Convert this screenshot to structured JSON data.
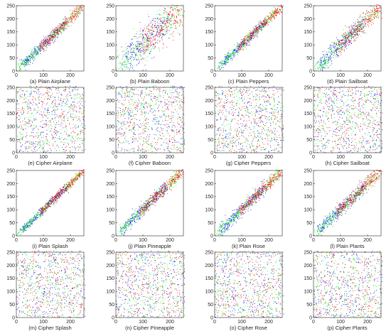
{
  "chart_data": [
    {
      "type": "scatter",
      "caption": "(a) Plain Airplane",
      "pattern": "correlated",
      "spread": 10,
      "xlim": [
        0,
        250
      ],
      "ylim": [
        0,
        250
      ],
      "xticks": [
        0,
        100,
        200
      ],
      "yticks": [
        0,
        50,
        100,
        150,
        200,
        250
      ],
      "x_tick_labels": [
        "0",
        "100",
        "200"
      ],
      "y_tick_labels": [
        "0",
        "50",
        "100",
        "150",
        "200",
        "250"
      ],
      "series": [
        {
          "color": "#0000ff"
        },
        {
          "color": "#00ff00"
        },
        {
          "color": "#ff0000"
        }
      ]
    },
    {
      "type": "scatter",
      "caption": "(b) Plain Baboon",
      "pattern": "correlated",
      "spread": 32,
      "xlim": [
        0,
        250
      ],
      "ylim": [
        0,
        250
      ],
      "xticks": [
        0,
        100,
        200
      ],
      "yticks": [
        0,
        50,
        100,
        150,
        200,
        250
      ],
      "x_tick_labels": [
        "0",
        "100",
        "200"
      ],
      "y_tick_labels": [
        "0",
        "50",
        "100",
        "150",
        "200",
        "250"
      ],
      "series": [
        {
          "color": "#0000ff"
        },
        {
          "color": "#00ff00"
        },
        {
          "color": "#ff0000"
        }
      ]
    },
    {
      "type": "scatter",
      "caption": "(c) Plain Peppers",
      "pattern": "correlated",
      "spread": 9,
      "xlim": [
        0,
        250
      ],
      "ylim": [
        0,
        250
      ],
      "xticks": [
        0,
        100,
        200
      ],
      "yticks": [
        0,
        50,
        100,
        150,
        200,
        250
      ],
      "x_tick_labels": [
        "0",
        "100",
        "200"
      ],
      "y_tick_labels": [
        "0",
        "50",
        "100",
        "150",
        "200",
        "250"
      ],
      "series": [
        {
          "color": "#0000ff"
        },
        {
          "color": "#00ff00"
        },
        {
          "color": "#ff0000"
        }
      ]
    },
    {
      "type": "scatter",
      "caption": "(d) Plain Sailboat",
      "pattern": "correlated",
      "spread": 16,
      "xlim": [
        0,
        250
      ],
      "ylim": [
        0,
        250
      ],
      "xticks": [
        0,
        100,
        200
      ],
      "yticks": [
        0,
        50,
        100,
        150,
        200,
        250
      ],
      "x_tick_labels": [
        "0",
        "100",
        "200"
      ],
      "y_tick_labels": [
        "0",
        "50",
        "100",
        "150",
        "200",
        "250"
      ],
      "series": [
        {
          "color": "#0000ff"
        },
        {
          "color": "#00ff00"
        },
        {
          "color": "#ff0000"
        }
      ]
    },
    {
      "type": "scatter",
      "caption": "(e) Cipher Airplane",
      "pattern": "uniform",
      "xlim": [
        0,
        250
      ],
      "ylim": [
        0,
        250
      ],
      "xticks": [
        0,
        100,
        200
      ],
      "yticks": [
        0,
        50,
        100,
        150,
        200,
        250
      ],
      "x_tick_labels": [
        "0",
        "100",
        "200"
      ],
      "y_tick_labels": [
        "0",
        "50",
        "100",
        "150",
        "200",
        "250"
      ],
      "series": [
        {
          "color": "#0000ff"
        },
        {
          "color": "#00ff00"
        },
        {
          "color": "#ff0000"
        }
      ]
    },
    {
      "type": "scatter",
      "caption": "(f) Cipher Baboon",
      "pattern": "uniform",
      "xlim": [
        0,
        250
      ],
      "ylim": [
        0,
        250
      ],
      "xticks": [
        0,
        100,
        200
      ],
      "yticks": [
        0,
        50,
        100,
        150,
        200,
        250
      ],
      "x_tick_labels": [
        "0",
        "100",
        "200"
      ],
      "y_tick_labels": [
        "0",
        "50",
        "100",
        "150",
        "200",
        "250"
      ],
      "series": [
        {
          "color": "#0000ff"
        },
        {
          "color": "#00ff00"
        },
        {
          "color": "#ff0000"
        }
      ]
    },
    {
      "type": "scatter",
      "caption": "(g) Cipher Peppers",
      "pattern": "uniform",
      "xlim": [
        0,
        250
      ],
      "ylim": [
        0,
        250
      ],
      "xticks": [
        0,
        100,
        200
      ],
      "yticks": [
        0,
        50,
        100,
        150,
        200,
        250
      ],
      "x_tick_labels": [
        "0",
        "100",
        "200"
      ],
      "y_tick_labels": [
        "0",
        "50",
        "100",
        "150",
        "200",
        "250"
      ],
      "series": [
        {
          "color": "#0000ff"
        },
        {
          "color": "#00ff00"
        },
        {
          "color": "#ff0000"
        }
      ]
    },
    {
      "type": "scatter",
      "caption": "(h) Cipher Sailboat",
      "pattern": "uniform",
      "xlim": [
        0,
        250
      ],
      "ylim": [
        0,
        250
      ],
      "xticks": [
        0,
        100,
        200
      ],
      "yticks": [
        0,
        50,
        100,
        150,
        200,
        250
      ],
      "x_tick_labels": [
        "0",
        "100",
        "200"
      ],
      "y_tick_labels": [
        "0",
        "50",
        "100",
        "150",
        "200",
        "250"
      ],
      "series": [
        {
          "color": "#0000ff"
        },
        {
          "color": "#00ff00"
        },
        {
          "color": "#ff0000"
        }
      ]
    },
    {
      "type": "scatter",
      "caption": "(i) Plain Splash",
      "pattern": "correlated",
      "spread": 7,
      "xlim": [
        0,
        250
      ],
      "ylim": [
        0,
        250
      ],
      "xticks": [
        0,
        100,
        200
      ],
      "yticks": [
        0,
        50,
        100,
        150,
        200,
        250
      ],
      "x_tick_labels": [
        "0",
        "100",
        "200"
      ],
      "y_tick_labels": [
        "0",
        "50",
        "100",
        "150",
        "200",
        "250"
      ],
      "series": [
        {
          "color": "#0000ff"
        },
        {
          "color": "#00ff00"
        },
        {
          "color": "#ff0000"
        }
      ]
    },
    {
      "type": "scatter",
      "caption": "(j) Plain Pineapple",
      "pattern": "correlated",
      "spread": 10,
      "xlim": [
        0,
        250
      ],
      "ylim": [
        0,
        250
      ],
      "xticks": [
        0,
        100,
        200
      ],
      "yticks": [
        0,
        50,
        100,
        150,
        200,
        250
      ],
      "x_tick_labels": [
        "0",
        "100",
        "200"
      ],
      "y_tick_labels": [
        "0",
        "50",
        "100",
        "150",
        "200",
        "250"
      ],
      "series": [
        {
          "color": "#0000ff"
        },
        {
          "color": "#00ff00"
        },
        {
          "color": "#ff0000"
        }
      ]
    },
    {
      "type": "scatter",
      "caption": "(k) Plain Rose",
      "pattern": "correlated",
      "spread": 11,
      "xlim": [
        0,
        250
      ],
      "ylim": [
        0,
        250
      ],
      "xticks": [
        0,
        100,
        200
      ],
      "yticks": [
        0,
        50,
        100,
        150,
        200,
        250
      ],
      "x_tick_labels": [
        "0",
        "100",
        "200"
      ],
      "y_tick_labels": [
        "0",
        "50",
        "100",
        "150",
        "200",
        "250"
      ],
      "series": [
        {
          "color": "#0000ff"
        },
        {
          "color": "#00ff00"
        },
        {
          "color": "#ff0000"
        }
      ]
    },
    {
      "type": "scatter",
      "caption": "(l) Plain Plants",
      "pattern": "correlated",
      "spread": 12,
      "xlim": [
        0,
        250
      ],
      "ylim": [
        0,
        250
      ],
      "xticks": [
        0,
        100,
        200
      ],
      "yticks": [
        0,
        50,
        100,
        150,
        200,
        250
      ],
      "x_tick_labels": [
        "0",
        "100",
        "200"
      ],
      "y_tick_labels": [
        "0",
        "50",
        "100",
        "150",
        "200",
        "250"
      ],
      "series": [
        {
          "color": "#0000ff"
        },
        {
          "color": "#00ff00"
        },
        {
          "color": "#ff0000"
        }
      ]
    },
    {
      "type": "scatter",
      "caption": "(m) Cipher Splash",
      "pattern": "uniform",
      "xlim": [
        0,
        250
      ],
      "ylim": [
        0,
        250
      ],
      "xticks": [
        0,
        100,
        200
      ],
      "yticks": [
        0,
        50,
        100,
        150,
        200,
        250
      ],
      "x_tick_labels": [
        "0",
        "100",
        "200"
      ],
      "y_tick_labels": [
        "0",
        "50",
        "100",
        "150",
        "200",
        "250"
      ],
      "series": [
        {
          "color": "#0000ff"
        },
        {
          "color": "#00ff00"
        },
        {
          "color": "#ff0000"
        }
      ]
    },
    {
      "type": "scatter",
      "caption": "(n) Cipher Pineapple",
      "pattern": "uniform",
      "xlim": [
        0,
        250
      ],
      "ylim": [
        0,
        250
      ],
      "xticks": [
        0,
        100,
        200
      ],
      "yticks": [
        0,
        50,
        100,
        150,
        200,
        250
      ],
      "x_tick_labels": [
        "0",
        "100",
        "200"
      ],
      "y_tick_labels": [
        "0",
        "50",
        "100",
        "150",
        "200",
        "250"
      ],
      "series": [
        {
          "color": "#0000ff"
        },
        {
          "color": "#00ff00"
        },
        {
          "color": "#ff0000"
        }
      ]
    },
    {
      "type": "scatter",
      "caption": "(o) Cipher Rose",
      "pattern": "uniform",
      "xlim": [
        0,
        250
      ],
      "ylim": [
        0,
        250
      ],
      "xticks": [
        0,
        100,
        200
      ],
      "yticks": [
        0,
        50,
        100,
        150,
        200,
        250
      ],
      "x_tick_labels": [
        "0",
        "100",
        "200"
      ],
      "y_tick_labels": [
        "0",
        "50",
        "100",
        "150",
        "200",
        "250"
      ],
      "series": [
        {
          "color": "#0000ff"
        },
        {
          "color": "#00ff00"
        },
        {
          "color": "#ff0000"
        }
      ]
    },
    {
      "type": "scatter",
      "caption": "(p) Cipher Plants",
      "pattern": "uniform",
      "xlim": [
        0,
        250
      ],
      "ylim": [
        0,
        250
      ],
      "xticks": [
        0,
        100,
        200
      ],
      "yticks": [
        0,
        50,
        100,
        150,
        200,
        250
      ],
      "x_tick_labels": [
        "0",
        "100",
        "200"
      ],
      "y_tick_labels": [
        "0",
        "50",
        "100",
        "150",
        "200",
        "250"
      ],
      "series": [
        {
          "color": "#0000ff"
        },
        {
          "color": "#00ff00"
        },
        {
          "color": "#ff0000"
        }
      ]
    }
  ]
}
